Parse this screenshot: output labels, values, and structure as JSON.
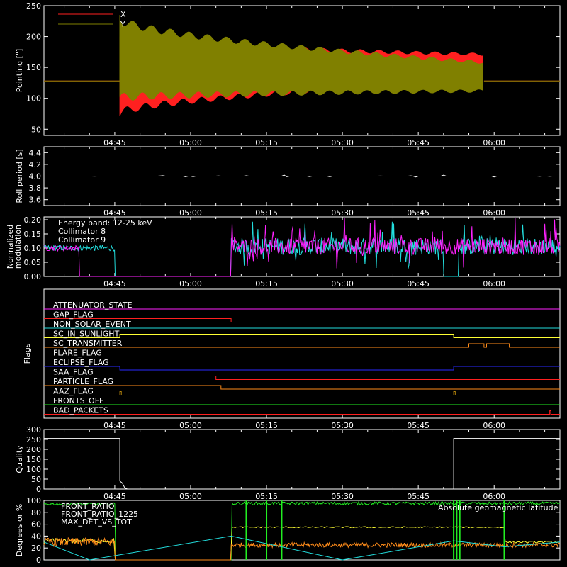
{
  "colors": {
    "background": "#000000",
    "axis": "#ffffff",
    "red": "#ff2020",
    "olive": "#808000",
    "white": "#ffffff",
    "cyan": "#22dddd",
    "magenta": "#ff22ff",
    "yellow": "#ffff33",
    "orange": "#ff8c1a",
    "blue": "#2a2aff",
    "green": "#22ee22",
    "brown": "#b8860b"
  },
  "time_axis": {
    "ticks": [
      "04:45",
      "05:00",
      "05:15",
      "05:30",
      "05:45",
      "06:00"
    ],
    "tick_minutes": [
      285,
      300,
      315,
      330,
      345,
      360
    ],
    "range_minutes": [
      271,
      373
    ]
  },
  "chart_data": [
    {
      "id": "pointing",
      "type": "line",
      "title": "",
      "ylabel": "Pointing [\"]",
      "ylim": [
        40,
        250
      ],
      "yticks": [
        50,
        100,
        150,
        200,
        250
      ],
      "legend": [
        "X",
        "Y"
      ],
      "legend_placement": "top-left",
      "series": [
        {
          "name": "X",
          "color": "red",
          "baseline": 128,
          "x_start": 286,
          "x_end": 358,
          "osc_start": {
            "x": 286,
            "min": 70,
            "max": 200
          },
          "osc_end": {
            "x": 358,
            "min": 127,
            "max": 173
          }
        },
        {
          "name": "Y",
          "color": "olive",
          "baseline": 128,
          "x_start": 286,
          "x_end": 358,
          "osc_start": {
            "x": 286,
            "min": 95,
            "max": 235
          },
          "osc_end": {
            "x": 358,
            "min": 110,
            "max": 160
          }
        }
      ]
    },
    {
      "id": "roll-period",
      "type": "line",
      "title": "",
      "ylabel": "Roll period [s]",
      "ylim": [
        3.5,
        4.5
      ],
      "yticks": [
        3.6,
        3.8,
        4.0,
        4.2,
        4.4
      ],
      "series": [
        {
          "color": "white",
          "value": 4.0
        }
      ]
    },
    {
      "id": "modulation",
      "type": "line",
      "title": "",
      "ylabel": "Normalized modulation",
      "ylim": [
        0,
        0.21
      ],
      "yticks": [
        0.0,
        0.05,
        0.1,
        0.15,
        0.2
      ],
      "annotations": [
        "Energy band: 12-25 keV",
        "Collimator 8",
        "Collimator 9"
      ],
      "series": [
        {
          "name": "Collimator 8",
          "color": "cyan",
          "base": 0.1,
          "zero_intervals": [
            [
              285,
              308
            ],
            [
              350,
              353
            ]
          ]
        },
        {
          "name": "Collimator 9",
          "color": "magenta",
          "base": 0.1,
          "zero_intervals": [
            [
              278,
              308
            ]
          ]
        }
      ]
    },
    {
      "id": "flags",
      "type": "line",
      "title": "",
      "ylabel": "Flags",
      "series": [
        {
          "name": "ATTENUATOR_STATE",
          "color": "magenta",
          "steps": []
        },
        {
          "name": "GAP_FLAG",
          "color": "red",
          "steps": [
            [
              308,
              -1
            ]
          ]
        },
        {
          "name": "NON_SOLAR_EVENT",
          "color": "cyan",
          "steps": []
        },
        {
          "name": "SC_IN_SUNLIGHT",
          "color": "yellow",
          "steps": [
            [
              286,
              1
            ],
            [
              352,
              -1
            ]
          ]
        },
        {
          "name": "SC_TRANSMITTER",
          "color": "orange",
          "steps": [
            [
              355,
              1
            ],
            [
              358,
              -1
            ],
            [
              358.5,
              1
            ],
            [
              363,
              -1
            ]
          ]
        },
        {
          "name": "FLARE_FLAG",
          "color": "yellow",
          "steps": []
        },
        {
          "name": "ECLIPSE_FLAG",
          "color": "blue",
          "steps": [
            [
              286,
              -1
            ],
            [
              352,
              1
            ]
          ]
        },
        {
          "name": "SAA_FLAG",
          "color": "red",
          "steps": [
            [
              305,
              -1
            ]
          ]
        },
        {
          "name": "PARTICLE_FLAG",
          "color": "orange",
          "steps": [
            [
              306,
              -1
            ]
          ]
        },
        {
          "name": "AAZ_FLAG",
          "color": "brown",
          "steps": [
            [
              286,
              1
            ],
            [
              286.3,
              -1
            ],
            [
              352,
              1
            ],
            [
              352.3,
              -1
            ]
          ]
        },
        {
          "name": "FRONTS_OFF",
          "color": "green",
          "steps": []
        },
        {
          "name": "BAD_PACKETS",
          "color": "red",
          "steps": [
            [
              371,
              1
            ],
            [
              371.2,
              -1
            ]
          ]
        }
      ]
    },
    {
      "id": "quality",
      "type": "line",
      "title": "",
      "ylabel": "Quality",
      "ylim": [
        0,
        300
      ],
      "yticks": [
        0,
        50,
        100,
        150,
        200,
        250,
        300
      ],
      "series": [
        {
          "color": "white",
          "points": [
            [
              271,
              255
            ],
            [
              286,
              255
            ],
            [
              286,
              40
            ],
            [
              286.5,
              30
            ],
            [
              287,
              5
            ],
            [
              287.5,
              0
            ],
            [
              352,
              0
            ],
            [
              352,
              255
            ],
            [
              373,
              255
            ]
          ]
        }
      ]
    },
    {
      "id": "ratios",
      "type": "line",
      "title": "",
      "ylabel": "Degrees or %",
      "ylim": [
        0,
        100
      ],
      "yticks": [
        0,
        20,
        40,
        60,
        80,
        100
      ],
      "legend": [
        "FRONT_RATIO",
        "FRONT_RATIO_1225",
        "MAX_DET_VS_TOT"
      ],
      "annotations": [
        "Absolute geomagnetic latitude"
      ],
      "series": [
        {
          "name": "FRONT_RATIO",
          "color": "yellow"
        },
        {
          "name": "FRONT_RATIO_1225",
          "color": "green"
        },
        {
          "name": "MAX_DET_VS_TOT",
          "color": "orange"
        },
        {
          "name": "Absolute geomagnetic latitude",
          "color": "cyan",
          "points": [
            [
              271,
              30
            ],
            [
              280,
              0
            ],
            [
              308,
              40
            ],
            [
              330,
              0
            ],
            [
              352,
              32
            ],
            [
              362,
              22
            ],
            [
              373,
              30
            ]
          ]
        }
      ]
    }
  ]
}
